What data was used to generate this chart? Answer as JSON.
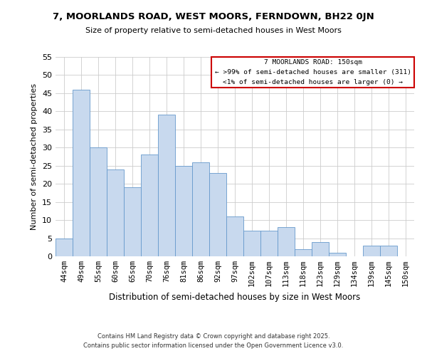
{
  "title": "7, MOORLANDS ROAD, WEST MOORS, FERNDOWN, BH22 0JN",
  "subtitle": "Size of property relative to semi-detached houses in West Moors",
  "xlabel": "Distribution of semi-detached houses by size in West Moors",
  "ylabel": "Number of semi-detached properties",
  "bin_labels": [
    "44sqm",
    "49sqm",
    "55sqm",
    "60sqm",
    "65sqm",
    "70sqm",
    "76sqm",
    "81sqm",
    "86sqm",
    "92sqm",
    "97sqm",
    "102sqm",
    "107sqm",
    "113sqm",
    "118sqm",
    "123sqm",
    "129sqm",
    "134sqm",
    "139sqm",
    "145sqm",
    "150sqm"
  ],
  "bar_values": [
    5,
    46,
    30,
    24,
    19,
    28,
    39,
    25,
    26,
    23,
    11,
    7,
    7,
    8,
    2,
    4,
    1,
    0,
    3,
    3,
    0
  ],
  "bar_color": "#c8d9ee",
  "bar_edge_color": "#6699cc",
  "highlight_box_color": "#cc0000",
  "annotation_title": "7 MOORLANDS ROAD: 150sqm",
  "annotation_line2": "← >99% of semi-detached houses are smaller (311)",
  "annotation_line3": "<1% of semi-detached houses are larger (0) →",
  "ylim": [
    0,
    55
  ],
  "yticks": [
    0,
    5,
    10,
    15,
    20,
    25,
    30,
    35,
    40,
    45,
    50,
    55
  ],
  "footer1": "Contains HM Land Registry data © Crown copyright and database right 2025.",
  "footer2": "Contains public sector information licensed under the Open Government Licence v3.0.",
  "background_color": "#ffffff",
  "grid_color": "#cccccc"
}
